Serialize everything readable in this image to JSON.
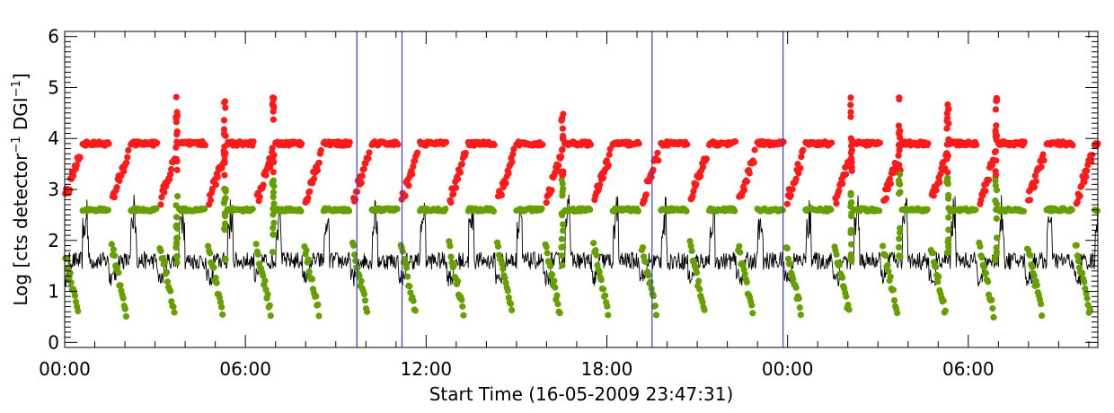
{
  "chart_data": {
    "type": "scatter",
    "title": "",
    "xlabel": "Start Time (16-05-2009 23:47:31)",
    "ylabel": {
      "prefix": "Log [cts detector",
      "sup1": "−1",
      "mid": " DGI",
      "sup2": "−1",
      "suffix": "]"
    },
    "ylim": [
      -0.1,
      6.1
    ],
    "xlim_hours": [
      0,
      34.3
    ],
    "y_ticks": [
      "0",
      "1",
      "2",
      "3",
      "4",
      "5",
      "6"
    ],
    "x_ticks": [
      {
        "label": "00:00",
        "hour": 0
      },
      {
        "label": "06:00",
        "hour": 6
      },
      {
        "label": "12:00",
        "hour": 12
      },
      {
        "label": "18:00",
        "hour": 18
      },
      {
        "label": "00:00",
        "hour": 24
      },
      {
        "label": "06:00",
        "hour": 30
      }
    ],
    "vertical_lines_hours": [
      9.7,
      11.2,
      19.5,
      23.85
    ],
    "colors": {
      "upper_series": "#ff1a1a",
      "middle_series": "#66a000",
      "count_rate_line": "#000000",
      "vertical_lines": "#3b3bd9"
    },
    "series": [
      {
        "id": "upper",
        "marker": "circle",
        "baseline": 3.9,
        "dip_low": 2.8,
        "spike_high": 4.7
      },
      {
        "id": "middle",
        "marker": "circle",
        "baseline": 2.6,
        "dip_low": 0.5,
        "spike_high": 3.3
      },
      {
        "id": "rate",
        "marker": "line",
        "baseline": 1.6,
        "low": 1.1,
        "peak_high": 2.9
      }
    ],
    "orbit_period_hours": 1.6,
    "first_orbit_start_hours": 0.6,
    "grid": false,
    "legend": "none"
  }
}
